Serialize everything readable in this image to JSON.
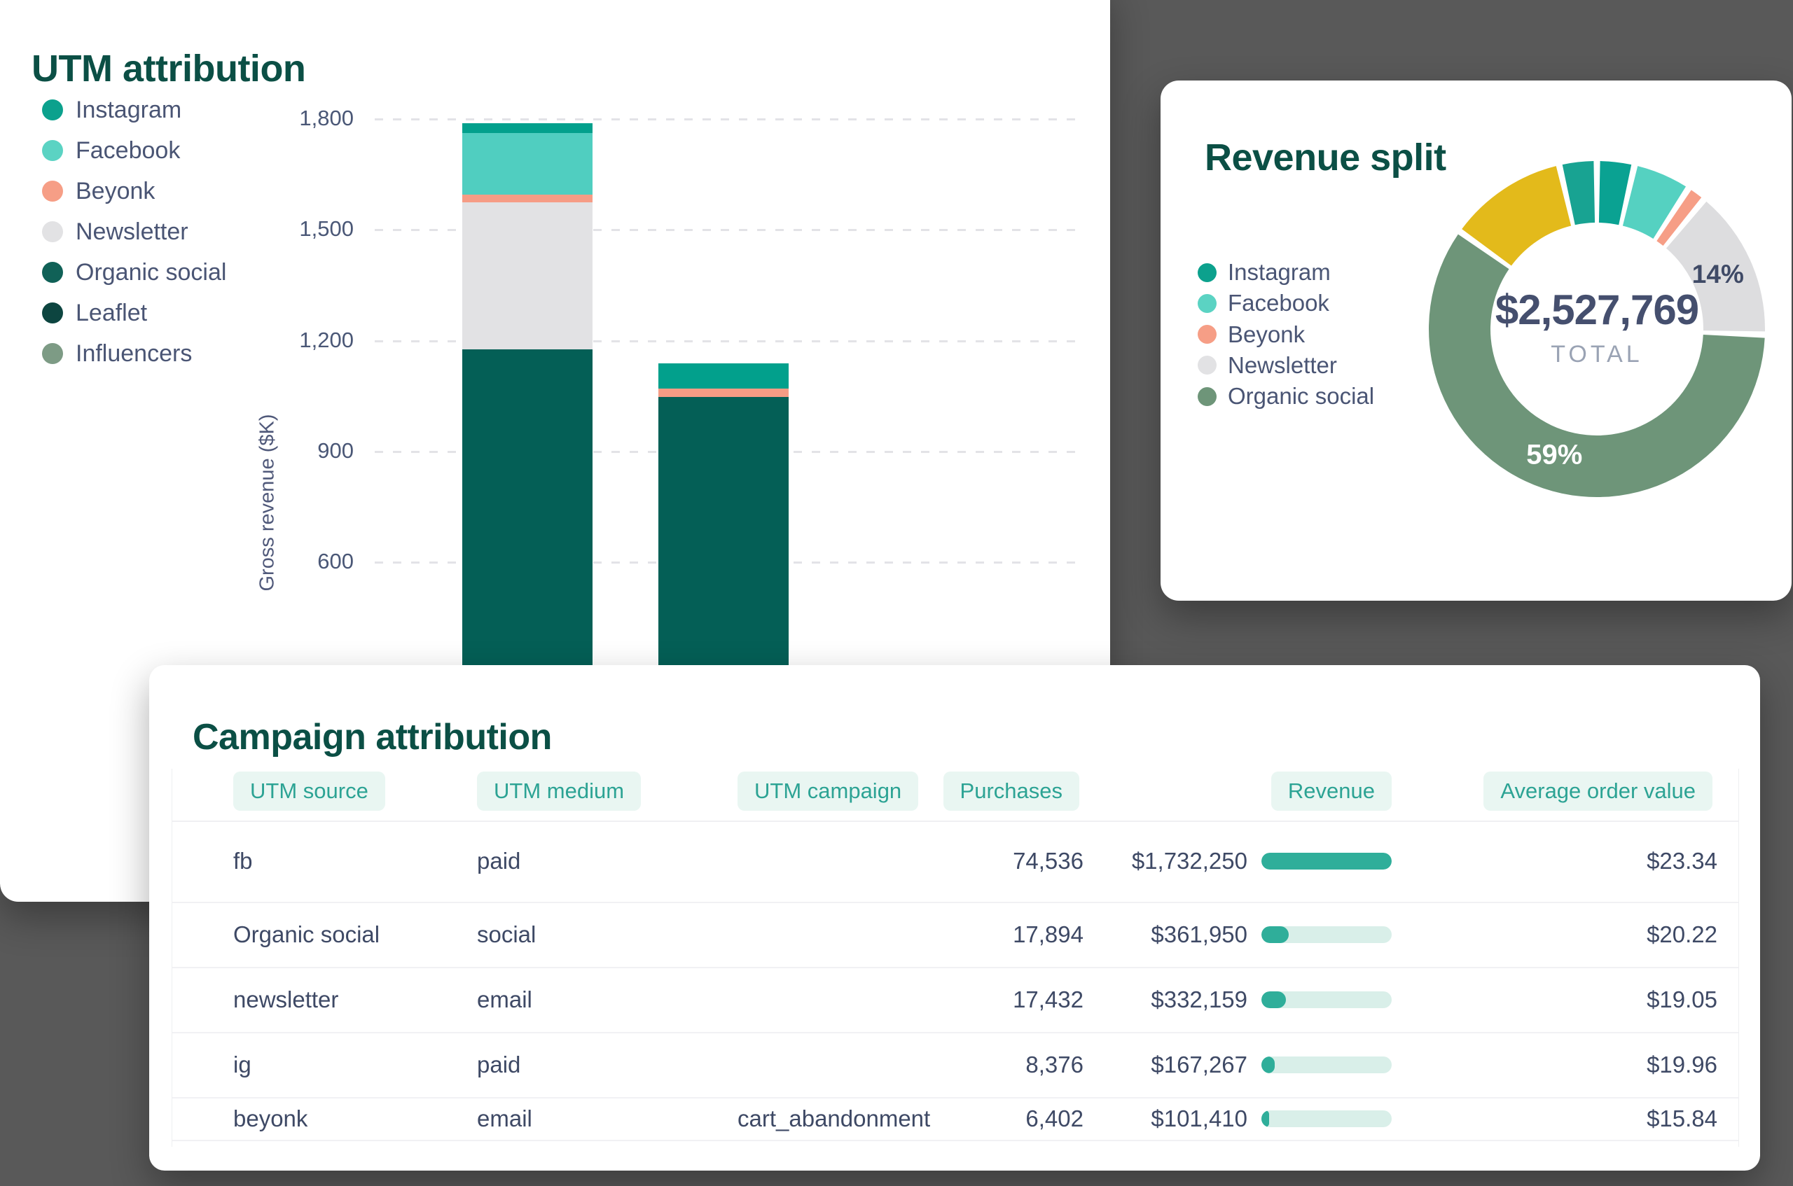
{
  "background_color": "#595959",
  "utm_card": {
    "title": "UTM attribution",
    "legend": [
      {
        "label": "Instagram",
        "color": "#0CA18D"
      },
      {
        "label": "Facebook",
        "color": "#5BD3C3"
      },
      {
        "label": "Beyonk",
        "color": "#F69E86"
      },
      {
        "label": "Newsletter",
        "color": "#E2E2E4"
      },
      {
        "label": "Organic social",
        "color": "#106157"
      },
      {
        "label": "Leaflet",
        "color": "#0D4540"
      },
      {
        "label": "Influencers",
        "color": "#7D9B85"
      }
    ],
    "y_axis": {
      "label": "Gross revenue ($K)",
      "ticks": [
        "1,800",
        "1,500",
        "1,200",
        "900",
        "600"
      ]
    },
    "bars": [
      {
        "category": "",
        "segments": [
          {
            "name": "Instagram",
            "value": 26,
            "color": "#02A08C"
          },
          {
            "name": "Facebook",
            "value": 167,
            "color": "#50CEC0"
          },
          {
            "name": "Beyonk",
            "value": 21,
            "color": "#F69C85"
          },
          {
            "name": "Newsletter",
            "value": 398,
            "color": "#E2E2E4"
          },
          {
            "name": "Organic social",
            "value": 1177,
            "color": "#045F56"
          }
        ]
      },
      {
        "category": "",
        "segments": [
          {
            "name": "Instagram",
            "value": 68,
            "color": "#02A08C"
          },
          {
            "name": "Beyonk",
            "value": 23,
            "color": "#F69C85"
          },
          {
            "name": "Organic social",
            "value": 1047,
            "color": "#045F56"
          }
        ]
      }
    ]
  },
  "revenue_card": {
    "title": "Revenue split",
    "legend": [
      {
        "label": "Instagram",
        "color": "#0CA18D"
      },
      {
        "label": "Facebook",
        "color": "#5BD3C3"
      },
      {
        "label": "Beyonk",
        "color": "#F69E86"
      },
      {
        "label": "Newsletter",
        "color": "#E2E2E4"
      },
      {
        "label": "Organic social",
        "color": "#6E9579"
      }
    ],
    "center": {
      "total": "$2,527,769",
      "label": "TOTAL"
    },
    "segments": [
      {
        "name": "Instagram",
        "pct": 3,
        "color": "#0AA292"
      },
      {
        "name": "Facebook",
        "pct": 5,
        "color": "#55D1C1"
      },
      {
        "name": "Beyonk",
        "pct": 1.2,
        "color": "#F69E86"
      },
      {
        "name": "Newsletter",
        "pct": 14,
        "color": "#DDDDDF",
        "label": "14%",
        "label_color": "#3F4A66",
        "label_size": 37
      },
      {
        "name": "Organic social",
        "pct": 59,
        "color": "#6E9579",
        "label": "59%",
        "label_color": "#FFFFFF",
        "label_size": 40
      },
      {
        "name": "unlabeled-yellow",
        "pct": 11,
        "color": "#E3BA1B"
      },
      {
        "name": "unlabeled-teal",
        "pct": 3,
        "color": "#18A392"
      }
    ]
  },
  "table_card": {
    "title": "Campaign attribution",
    "columns": [
      "UTM source",
      "UTM medium",
      "UTM campaign",
      "Purchases",
      "Revenue",
      "Average order value"
    ],
    "rows": [
      {
        "source": "fb",
        "medium": "paid",
        "campaign": "",
        "purchases": "74,536",
        "revenue": "$1,732,250",
        "bar_pct": 100,
        "aov": "$23.34"
      },
      {
        "source": "Organic social",
        "medium": "social",
        "campaign": "",
        "purchases": "17,894",
        "revenue": "$361,950",
        "bar_pct": 21,
        "aov": "$20.22"
      },
      {
        "source": "newsletter",
        "medium": "email",
        "campaign": "",
        "purchases": "17,432",
        "revenue": "$332,159",
        "bar_pct": 19,
        "aov": "$19.05"
      },
      {
        "source": "ig",
        "medium": "paid",
        "campaign": "",
        "purchases": "8,376",
        "revenue": "$167,267",
        "bar_pct": 10,
        "aov": "$19.96"
      },
      {
        "source": "beyonk",
        "medium": "email",
        "campaign": "cart_abandonment",
        "purchases": "6,402",
        "revenue": "$101,410",
        "bar_pct": 6,
        "aov": "$15.84"
      }
    ]
  },
  "chart_data": [
    {
      "type": "bar",
      "stacked": true,
      "title": "UTM attribution",
      "xlabel": "",
      "ylabel": "Gross revenue ($K)",
      "yticks": [
        600,
        900,
        1200,
        1500,
        1800
      ],
      "grid": "dashed horizontal",
      "legend_position": "left",
      "categories": [
        "",
        ""
      ],
      "series": [
        {
          "name": "Instagram",
          "values": [
            26,
            68
          ],
          "color": "#02A08C"
        },
        {
          "name": "Facebook",
          "values": [
            167,
            0
          ],
          "color": "#50CEC0"
        },
        {
          "name": "Beyonk",
          "values": [
            21,
            23
          ],
          "color": "#F69C85"
        },
        {
          "name": "Newsletter",
          "values": [
            398,
            0
          ],
          "color": "#E2E2E4"
        },
        {
          "name": "Organic social",
          "values": [
            1177,
            1047
          ],
          "color": "#045F56"
        },
        {
          "name": "Leaflet",
          "values": [
            0,
            0
          ],
          "color": "#0D4540"
        },
        {
          "name": "Influencers",
          "values": [
            0,
            0
          ],
          "color": "#7D9B85"
        }
      ],
      "note": "bar bottoms and x-axis hidden behind overlapping table card; totals ~1789 and ~1138"
    },
    {
      "type": "pie",
      "subtype": "donut",
      "title": "Revenue split",
      "center_text": [
        "$2,527,769",
        "TOTAL"
      ],
      "legend_position": "left",
      "labels": [
        "Instagram",
        "Facebook",
        "Beyonk",
        "Newsletter",
        "Organic social",
        "unlabeled-yellow",
        "unlabeled-teal"
      ],
      "values_pct": [
        3,
        5,
        1.2,
        14,
        59,
        11,
        3
      ],
      "annotations": [
        "14% on Newsletter slice",
        "59% on Organic social slice"
      ]
    },
    {
      "type": "table",
      "title": "Campaign attribution",
      "columns": [
        "UTM source",
        "UTM medium",
        "UTM campaign",
        "Purchases",
        "Revenue",
        "Average order value"
      ],
      "rows": [
        [
          "fb",
          "paid",
          "",
          "74,536",
          "$1,732,250",
          "$23.34"
        ],
        [
          "Organic social",
          "social",
          "",
          "17,894",
          "$361,950",
          "$20.22"
        ],
        [
          "newsletter",
          "email",
          "",
          "17,432",
          "$332,159",
          "$19.05"
        ],
        [
          "ig",
          "paid",
          "",
          "8,376",
          "$167,267",
          "$19.96"
        ],
        [
          "beyonk",
          "email",
          "cart_abandonment",
          "6,402",
          "$101,410",
          "$15.84"
        ]
      ],
      "revenue_bar_pct": [
        100,
        21,
        19,
        10,
        6
      ]
    }
  ]
}
